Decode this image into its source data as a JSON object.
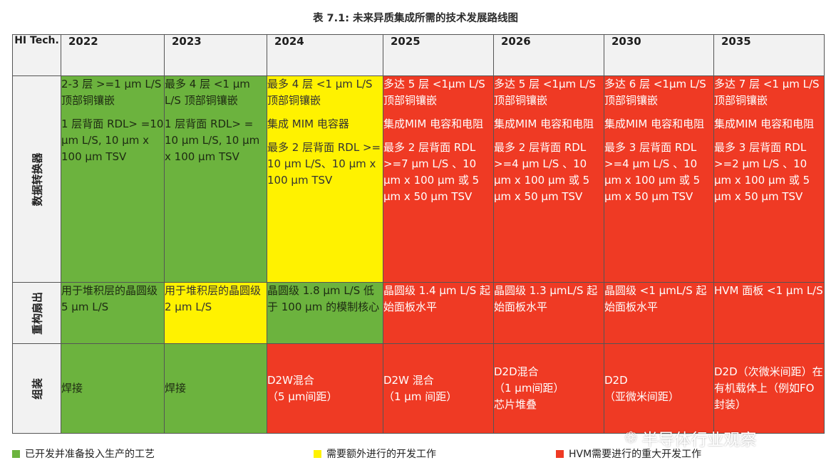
{
  "title": "表 7.1: 未来异质集成所需的技术发展路线图",
  "header": {
    "corner": "HI Tech.",
    "years": [
      "2022",
      "2023",
      "2024",
      "2025",
      "2026",
      "2030",
      "2035"
    ]
  },
  "rows": [
    {
      "label": "数据转换器",
      "cells": [
        {
          "color": "green",
          "paragraphs": [
            "2-3 层 >=1 μm L/S 顶部铜镶嵌",
            "1 层背面 RDL> =10 μm L/S, 10 μm x 100 μm TSV"
          ]
        },
        {
          "color": "green",
          "paragraphs": [
            "最多 4 层 <1 μm L/S 顶部铜镶嵌",
            "1 层背面 RDL> = 10 μm L/S, 10 μm x 100 μm TSV"
          ]
        },
        {
          "color": "yellow",
          "paragraphs": [
            "最多 4 层 <1 μm L/S 顶部铜镶嵌",
            "集成 MIM 电容器",
            "最多 2 层背面 RDL >= 10 μm L/S、10 μm x 100 μm TSV"
          ]
        },
        {
          "color": "red",
          "paragraphs": [
            "多达 5 层 <1μm L/S 顶部铜镶嵌",
            "集成MIM 电容和电阻",
            "最多 2 层背面 RDL >=7 μm L/S 、10 μm x 100 μm 或 5 μm x 50 μm TSV"
          ]
        },
        {
          "color": "red",
          "paragraphs": [
            "多达 5 层 <1μm L/S 顶部铜镶嵌",
            "集成MIM 电容和电阻",
            "最多 2 层背面 RDL >=4 μm L/S 、10 μm x 100 μm 或 5 μm x 50 μm TSV"
          ]
        },
        {
          "color": "red",
          "paragraphs": [
            "多达 6 层 <1μm L/S 顶部铜镶嵌",
            "集成MIM 电容和电阻",
            "最多 3 层背面 RDL >=4 μm L/S 、10 μm x 100 μm 或 5 μm x 50 μm TSV"
          ]
        },
        {
          "color": "red",
          "paragraphs": [
            "多达 7 层 <1 μm L/S 顶部铜镶嵌",
            "集成MIM 电容和电阻",
            "最多 3 层背面 RDL >=2 μm L/S 、10 μm x 100 μm 或 5 μm x 50 μm TSV"
          ]
        }
      ]
    },
    {
      "label": "重构扇出",
      "cells": [
        {
          "color": "green",
          "paragraphs": [
            "用于堆积层的晶圆级 5 μm L/S"
          ]
        },
        {
          "color": "yellow",
          "paragraphs": [
            "用于堆积层的晶圆级 2 μm L/S"
          ]
        },
        {
          "color": "green",
          "paragraphs": [
            "晶圆级 1.8 μm L/S 低于 100 μm 的模制核心"
          ]
        },
        {
          "color": "red",
          "paragraphs": [
            "晶圆级 1.4 μm L/S 起始面板水平"
          ]
        },
        {
          "color": "red",
          "paragraphs": [
            "晶圆级 1.3 μmL/S 起始面板水平"
          ]
        },
        {
          "color": "red",
          "paragraphs": [
            "晶圆级 <1 μmL/S 起始面板水平"
          ]
        },
        {
          "color": "red",
          "paragraphs": [
            "HVM 面板 <1 μm L/S"
          ]
        }
      ]
    },
    {
      "label": "组装",
      "cells": [
        {
          "color": "green",
          "paragraphs": [
            "焊接"
          ]
        },
        {
          "color": "green",
          "paragraphs": [
            "焊接"
          ]
        },
        {
          "color": "red",
          "paragraphs": [
            "D2W混合",
            "（5 μm间距）"
          ]
        },
        {
          "color": "red",
          "paragraphs": [
            "D2W 混合",
            "（1 μm 间距）"
          ]
        },
        {
          "color": "red",
          "paragraphs": [
            "D2D混合",
            "（1 μm间距）",
            "芯片堆叠"
          ]
        },
        {
          "color": "red",
          "paragraphs": [
            "D2D",
            "（亚微米间距）"
          ]
        },
        {
          "color": "red",
          "paragraphs": [
            "D2D（次微米间距）在有机载体上（例如FO封装）"
          ]
        }
      ]
    }
  ],
  "legend": [
    {
      "color": "#6cb33e",
      "label": "已开发并准备投入生产的工艺"
    },
    {
      "color": "#fff200",
      "label": "需要额外进行的开发工作"
    },
    {
      "color": "#ef3a24",
      "label": "HVM需要进行的重大开发工作"
    }
  ],
  "watermark": {
    "icon": "wechat-icon",
    "text": "半导体行业观察"
  },
  "colors": {
    "green": "#6cb33e",
    "yellow": "#fff200",
    "red": "#ef3a24",
    "header_bg": "#f2f2f2"
  }
}
